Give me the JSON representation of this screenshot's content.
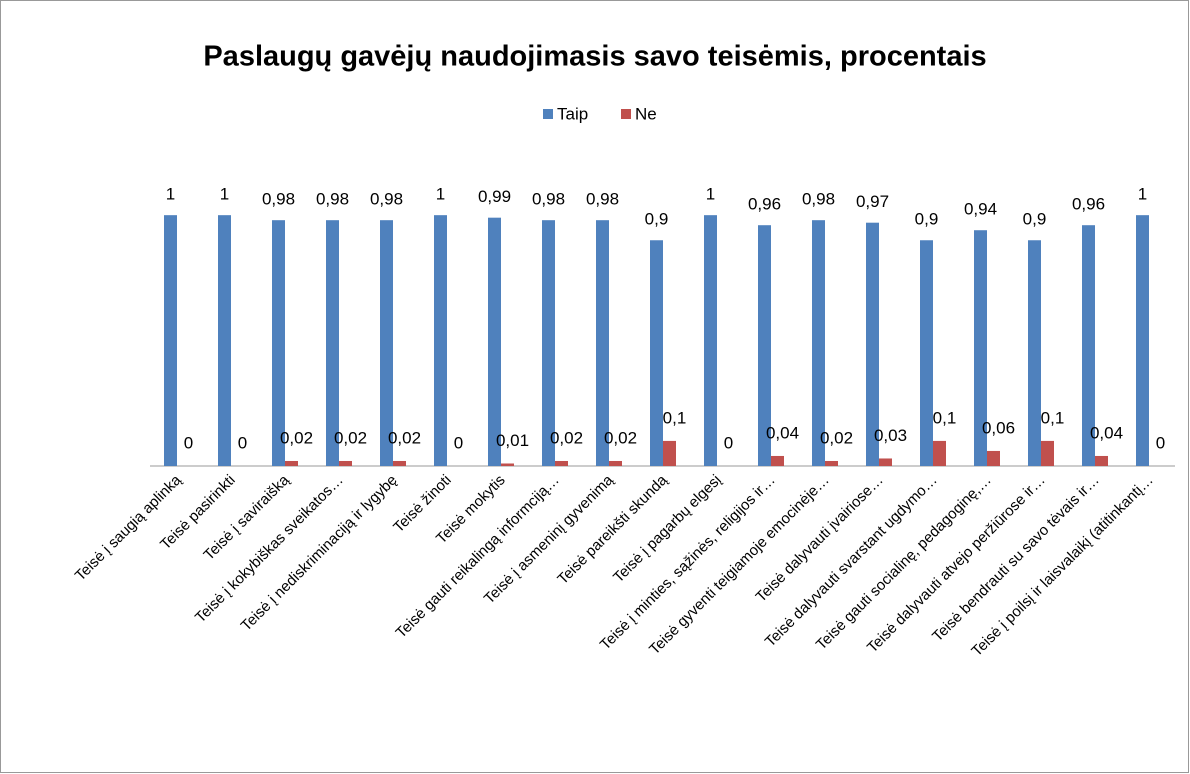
{
  "chart_data": {
    "type": "bar",
    "title": "Paslaugų gavėjų naudojimasis savo teisėmis, procentais",
    "categories": [
      "Teisė į saugią aplinką",
      "Teisė pasirinkti",
      "Teisė į saviraišką",
      "Teisė į kokybiškas sveikatos…",
      "Teisė į nediskriminaciją ir lygybę",
      "Teisė žinoti",
      "Teisė mokytis",
      "Teisė gauti reikalingą informciją…",
      "Teisė į asmeninį gyvenimą",
      "Teisė pareikšti skundą",
      "Teisė į pagarbų elgesį",
      "Teisė į minties, sąžinės, religijos ir…",
      "Teisė gyventi teigiamoje emocinėje…",
      "Teisė dalyvauti įvairiose…",
      "Teisė dalyvauti svarstant ugdymo…",
      "Teisė gauti socialinę, pedagoginę,…",
      "Teisė dalyvauti atvejo peržiūrose ir…",
      "Teisė bendrauti su savo tėvais ir…",
      "Teisė į poilsį ir laisvalaikį (atitinkantį…"
    ],
    "series": [
      {
        "name": "Taip",
        "color": "#4f81bd",
        "values": [
          1,
          1,
          0.98,
          0.98,
          0.98,
          1,
          0.99,
          0.98,
          0.98,
          0.9,
          1,
          0.96,
          0.98,
          0.97,
          0.9,
          0.94,
          0.9,
          0.96,
          1
        ],
        "value_labels": [
          "1",
          "1",
          "0,98",
          "0,98",
          "0,98",
          "1",
          "0,99",
          "0,98",
          "0,98",
          "0,9",
          "1",
          "0,96",
          "0,98",
          "0,97",
          "0,9",
          "0,94",
          "0,9",
          "0,96",
          "1"
        ]
      },
      {
        "name": "Ne",
        "color": "#c0504d",
        "values": [
          0,
          0,
          0.02,
          0.02,
          0.02,
          0,
          0.01,
          0.02,
          0.02,
          0.1,
          0,
          0.04,
          0.02,
          0.03,
          0.1,
          0.06,
          0.1,
          0.04,
          0
        ],
        "value_labels": [
          "0",
          "0",
          "0,02",
          "0,02",
          "0,02",
          "0",
          "0,01",
          "0,02",
          "0,02",
          "0,1",
          "0",
          "0,04",
          "0,02",
          "0,03",
          "0,1",
          "0,06",
          "0,1",
          "0,04",
          "0"
        ]
      }
    ],
    "ylim": [
      0,
      1.2
    ]
  }
}
